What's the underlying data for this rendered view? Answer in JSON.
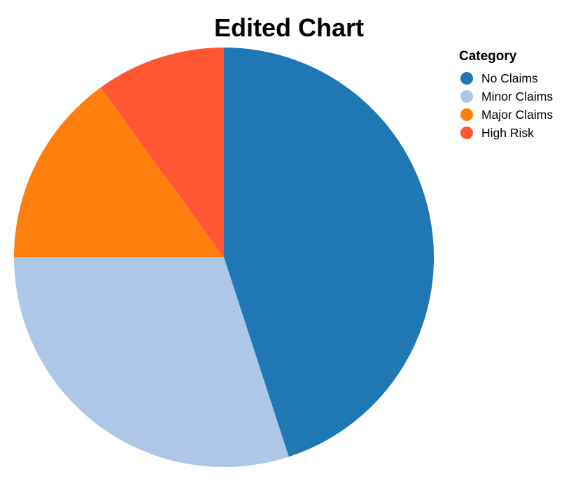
{
  "chart_data": {
    "type": "pie",
    "title": "Edited Chart",
    "legend": {
      "title": "Category",
      "placement": "top-right"
    },
    "categories": [
      "No Claims",
      "Minor Claims",
      "Major Claims",
      "High Risk"
    ],
    "values": [
      45,
      30,
      15,
      10
    ],
    "colors": [
      "#1f77b4",
      "#aec7e8",
      "#ff7f0e",
      "#ff5733"
    ],
    "start": "12 o'clock",
    "direction": "clockwise"
  }
}
